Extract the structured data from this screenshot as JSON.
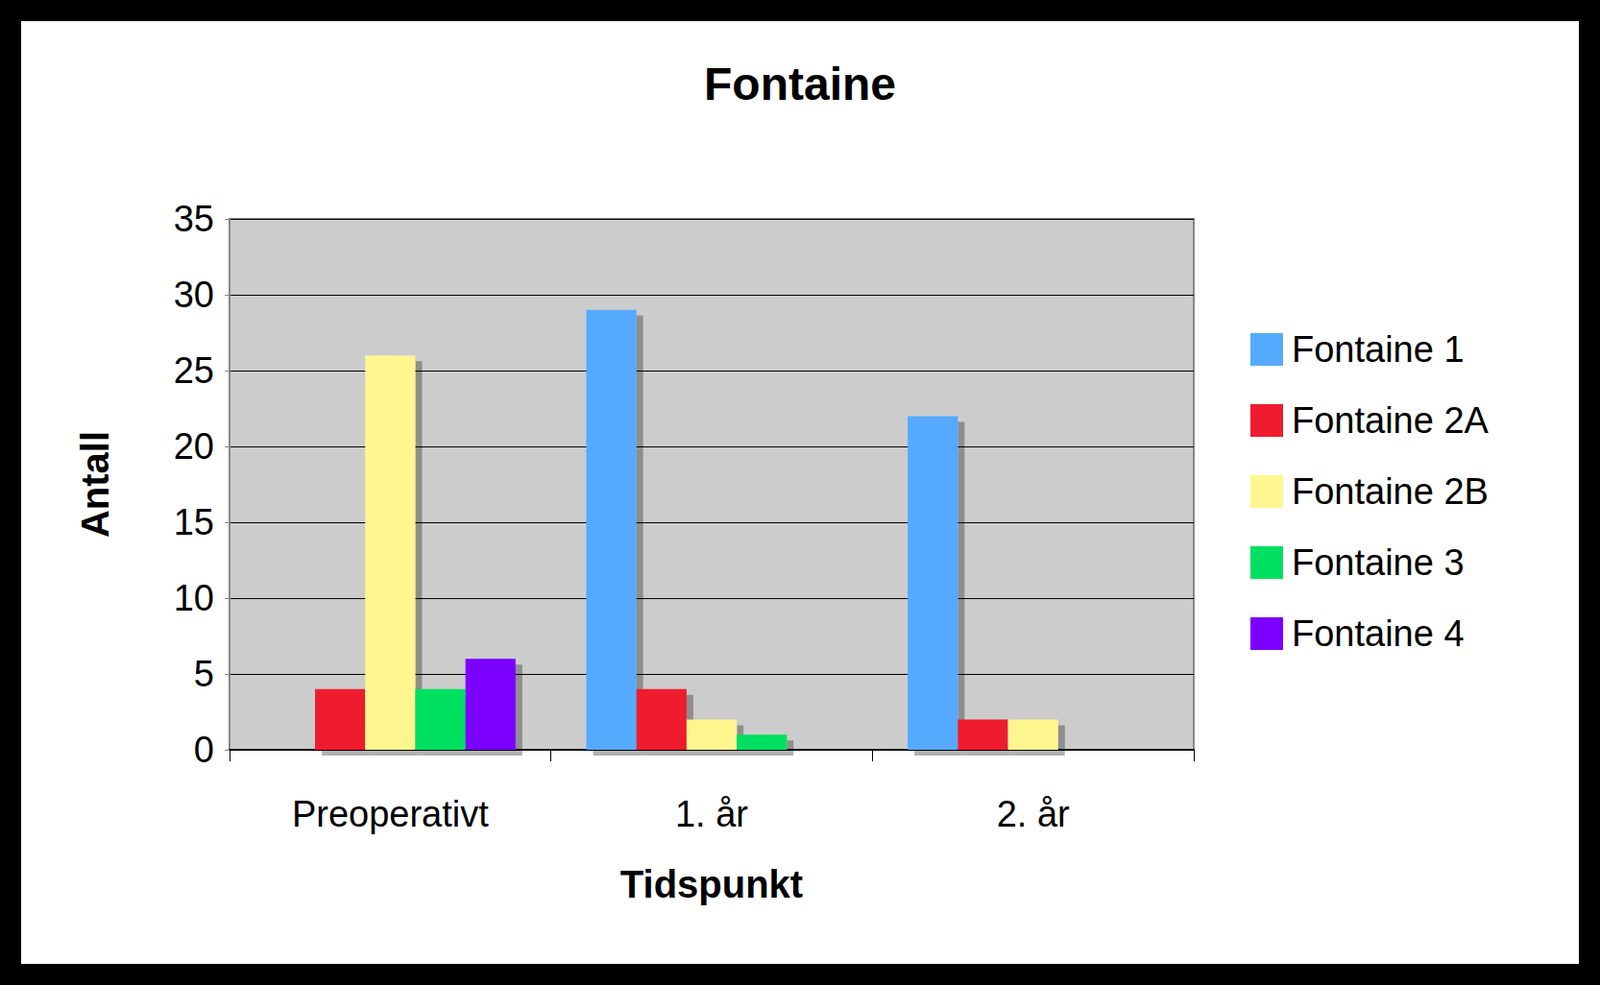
{
  "chart_data": {
    "type": "bar",
    "title": "Fontaine",
    "x_label": "Tidspunkt",
    "y_label": "Antall",
    "categories": [
      "Preoperativt",
      "1. år",
      "2. år"
    ],
    "series": [
      {
        "name": "Fontaine 1",
        "color": "#55aaff",
        "values": [
          0,
          29,
          22
        ]
      },
      {
        "name": "Fontaine 2A",
        "color": "#ee1c2e",
        "values": [
          4,
          4,
          2
        ]
      },
      {
        "name": "Fontaine 2B",
        "color": "#fff68f",
        "values": [
          26,
          2,
          2
        ]
      },
      {
        "name": "Fontaine 3",
        "color": "#00e060",
        "values": [
          4,
          1,
          0
        ]
      },
      {
        "name": "Fontaine 4",
        "color": "#7b00ff",
        "values": [
          6,
          0,
          0
        ]
      }
    ],
    "ylim": [
      0,
      35
    ],
    "yticks": [
      0,
      5,
      10,
      15,
      20,
      25,
      30,
      35
    ],
    "grid": true,
    "legend": "right"
  }
}
